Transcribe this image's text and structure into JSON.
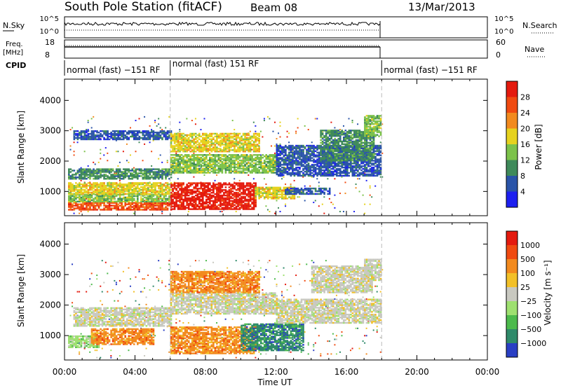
{
  "header": {
    "station": "South Pole Station (fitACF)",
    "beam": "Beam 08",
    "date": "13/Mar/2013"
  },
  "top_panels": {
    "nsky_label": "N.Sky",
    "nsearch_label": "N.Search",
    "nsky_ticks": [
      "10^5",
      "10^0"
    ],
    "nsearch_ticks": [
      "10^5",
      "10^0"
    ],
    "freq_label_1": "Freq.",
    "freq_label_2": "[MHz]",
    "freq_ticks": [
      "18",
      "8"
    ],
    "nave_ticks": [
      "60",
      "0"
    ],
    "nave_label": "Nave",
    "cpid_label": "CPID",
    "cpid_segments": [
      {
        "label": "normal (fast) −151 RF",
        "start_h": 0,
        "end_h": 6
      },
      {
        "label": "normal (fast) 151 RF",
        "start_h": 6,
        "end_h": 18
      },
      {
        "label": "normal (fast) −151 RF",
        "start_h": 18,
        "end_h": 24
      }
    ]
  },
  "chart_data": [
    {
      "type": "heatmap",
      "name": "power-panel",
      "ylabel": "Slant Range [km]",
      "y_ticks": [
        "1000",
        "2000",
        "3000",
        "4000"
      ],
      "y_tick_values": [
        1000,
        2000,
        3000,
        4000
      ],
      "ylim": [
        200,
        4700
      ],
      "xlim_h": [
        0,
        24
      ],
      "data_end_h": 18,
      "colorbar": {
        "label": "Power [dB]",
        "ticks": [
          "4",
          "8",
          "12",
          "16",
          "20",
          "24",
          "28"
        ],
        "colors": [
          "#1d20f0",
          "#2a54a8",
          "#3f8a5a",
          "#7cc24a",
          "#e6d21e",
          "#f28a1e",
          "#f04a10",
          "#e41a0e"
        ]
      },
      "regions": [
        {
          "t0": 0.2,
          "t1": 6,
          "r0": 380,
          "r1": 650,
          "c": 6
        },
        {
          "t0": 0.2,
          "t1": 6,
          "r0": 650,
          "r1": 900,
          "c": 3
        },
        {
          "t0": 0.2,
          "t1": 6,
          "r0": 900,
          "r1": 1300,
          "c": 4
        },
        {
          "t0": 0.2,
          "t1": 6,
          "r0": 1400,
          "r1": 1750,
          "c": 2
        },
        {
          "t0": 0.5,
          "t1": 6,
          "r0": 2700,
          "r1": 3000,
          "c": 1
        },
        {
          "t0": 6,
          "t1": 10.8,
          "r0": 400,
          "r1": 1300,
          "c": 7
        },
        {
          "t0": 10.8,
          "t1": 13,
          "r0": 750,
          "r1": 1150,
          "c": 4
        },
        {
          "t0": 12.5,
          "t1": 15,
          "r0": 900,
          "r1": 1100,
          "c": 1
        },
        {
          "t0": 6,
          "t1": 12,
          "r0": 1600,
          "r1": 2200,
          "c": 3
        },
        {
          "t0": 6,
          "t1": 11,
          "r0": 2300,
          "r1": 2900,
          "c": 4
        },
        {
          "t0": 12,
          "t1": 18,
          "r0": 1500,
          "r1": 2500,
          "c": 1
        },
        {
          "t0": 14.5,
          "t1": 17.6,
          "r0": 2000,
          "r1": 3000,
          "c": 2
        },
        {
          "t0": 17,
          "t1": 18,
          "r0": 2800,
          "r1": 3500,
          "c": 3
        }
      ]
    },
    {
      "type": "heatmap",
      "name": "velocity-panel",
      "xlabel": "Time UT",
      "ylabel": "Slant Range [km]",
      "x_ticks": [
        "00:00",
        "04:00",
        "08:00",
        "12:00",
        "16:00",
        "20:00",
        "00:00"
      ],
      "x_tick_values_h": [
        0,
        4,
        8,
        12,
        16,
        20,
        24
      ],
      "y_ticks": [
        "1000",
        "2000",
        "3000",
        "4000"
      ],
      "y_tick_values": [
        1000,
        2000,
        3000,
        4000
      ],
      "ylim": [
        200,
        4700
      ],
      "xlim_h": [
        0,
        24
      ],
      "data_end_h": 18,
      "colorbar": {
        "label": "Velocity [m s⁻¹]",
        "ticks": [
          "1000",
          "500",
          "100",
          "25",
          "−25",
          "−100",
          "−500",
          "−1000"
        ],
        "colors": [
          "#2a3fc4",
          "#2f8a6a",
          "#4cba4c",
          "#9ee070",
          "#c8c8c0",
          "#f2c028",
          "#f28a1e",
          "#f04a10",
          "#e41a0e"
        ]
      },
      "regions": [
        {
          "t0": 0.2,
          "t1": 2,
          "r0": 600,
          "r1": 1000,
          "c": 3
        },
        {
          "t0": 1.5,
          "t1": 5,
          "r0": 700,
          "r1": 1200,
          "c": 6
        },
        {
          "t0": 0.5,
          "t1": 6,
          "r0": 1300,
          "r1": 1900,
          "c": 4
        },
        {
          "t0": 6,
          "t1": 10.8,
          "r0": 400,
          "r1": 1300,
          "c": 6
        },
        {
          "t0": 10,
          "t1": 13.5,
          "r0": 500,
          "r1": 1400,
          "c": 1
        },
        {
          "t0": 6,
          "t1": 12,
          "r0": 1700,
          "r1": 2400,
          "c": 4
        },
        {
          "t0": 12,
          "t1": 18,
          "r0": 1400,
          "r1": 2200,
          "c": 4
        },
        {
          "t0": 14,
          "t1": 17.5,
          "r0": 2400,
          "r1": 3300,
          "c": 4
        },
        {
          "t0": 6,
          "t1": 11,
          "r0": 2400,
          "r1": 3100,
          "c": 6
        },
        {
          "t0": 17,
          "t1": 18,
          "r0": 2800,
          "r1": 3500,
          "c": 4
        }
      ]
    }
  ]
}
